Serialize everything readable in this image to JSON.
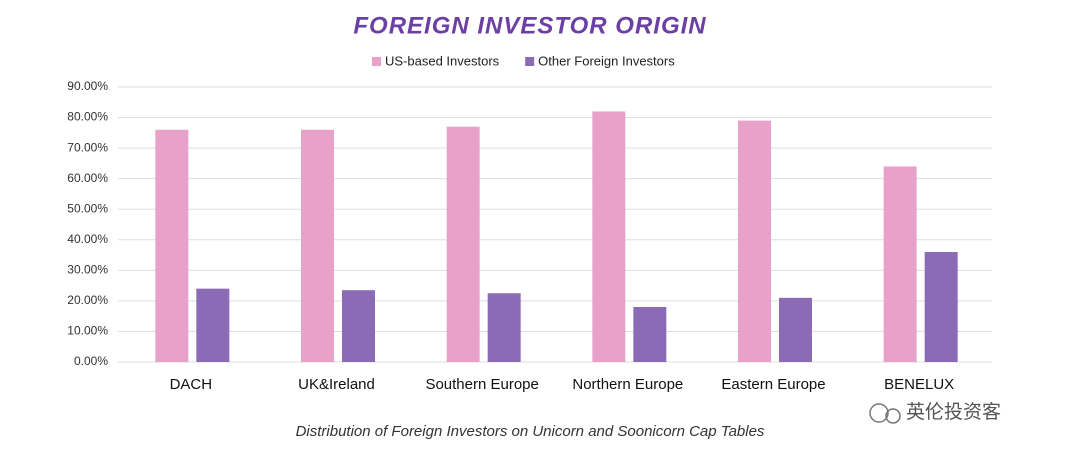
{
  "chart_data": {
    "type": "bar",
    "title": "FOREIGN INVESTOR ORIGIN",
    "subtitle": "Distribution of Foreign Investors on Unicorn and Soonicorn Cap Tables",
    "categories": [
      "DACH",
      "UK&Ireland",
      "Southern Europe",
      "Northern Europe",
      "Eastern Europe",
      "BENELUX"
    ],
    "series": [
      {
        "name": "US-based Investors",
        "color": "#e8a2c9",
        "values": [
          76,
          76,
          77,
          82,
          79,
          64
        ]
      },
      {
        "name": "Other Foreign Investors",
        "color": "#8b6bb5",
        "values": [
          24,
          23.5,
          22.5,
          18,
          21,
          36
        ]
      }
    ],
    "ylim": [
      0,
      90
    ],
    "yticks": [
      {
        "value": 0,
        "label": "0.00%"
      },
      {
        "value": 10,
        "label": "10.00%"
      },
      {
        "value": 20,
        "label": "20.00%"
      },
      {
        "value": 30,
        "label": "30.00%"
      },
      {
        "value": 40,
        "label": "40.00%"
      },
      {
        "value": 50,
        "label": "50.00%"
      },
      {
        "value": 60,
        "label": "60.00%"
      },
      {
        "value": 70,
        "label": "70.00%"
      },
      {
        "value": 80,
        "label": "80.00%"
      },
      {
        "value": 90,
        "label": "90.00%"
      }
    ],
    "grid": true,
    "legend": "top",
    "watermark": "英伦投资客"
  }
}
